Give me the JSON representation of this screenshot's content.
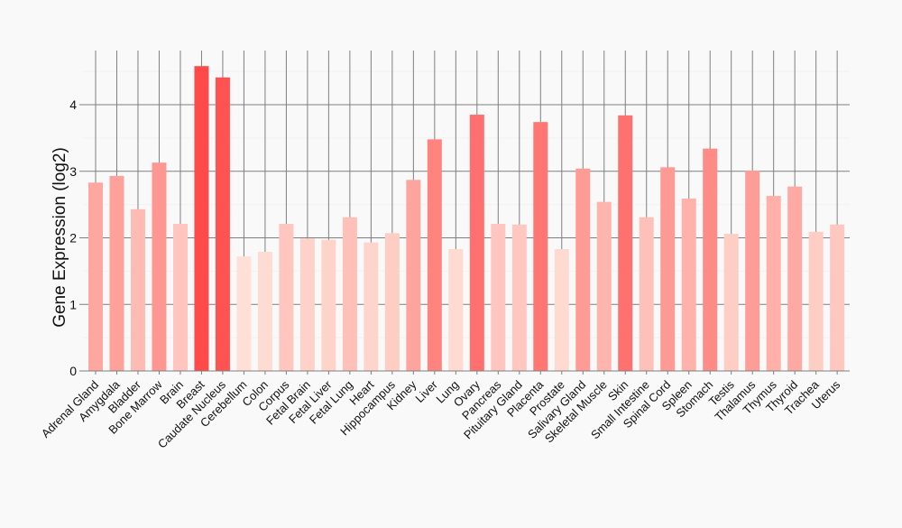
{
  "chart_data": {
    "type": "bar",
    "title": "",
    "xlabel": "",
    "ylabel": "Gene Expression (log2)",
    "ylim": [
      0,
      4.8
    ],
    "yticks": [
      0,
      1,
      2,
      3,
      4
    ],
    "grid": true,
    "colors": {
      "low": "#fee0d6",
      "high": "#ff4a4a"
    },
    "categories": [
      "Adrenal Gland",
      "Amygdala",
      "Bladder",
      "Bone Marrow",
      "Brain",
      "Breast",
      "Caudate Nucleus",
      "Cerebellum",
      "Colon",
      "Corpus",
      "Fetal Brain",
      "Fetal Liver",
      "Fetal Lung",
      "Heart",
      "Hippocampus",
      "Kidney",
      "Liver",
      "Lung",
      "Ovary",
      "Pancreas",
      "Pituitary Gland",
      "Placenta",
      "Prostate",
      "Salivary Gland",
      "Skeletal Muscle",
      "Skin",
      "Small Intestine",
      "Spinal Cord",
      "Spleen",
      "Stomach",
      "Testis",
      "Thalamus",
      "Thymus",
      "Thyroid",
      "Trachea",
      "Uterus"
    ],
    "values": [
      2.83,
      2.93,
      2.43,
      3.13,
      2.21,
      4.58,
      4.41,
      1.72,
      1.79,
      2.21,
      1.99,
      1.97,
      2.31,
      1.93,
      2.07,
      2.87,
      3.48,
      1.83,
      3.85,
      2.21,
      2.2,
      3.74,
      1.83,
      3.04,
      2.54,
      3.84,
      2.31,
      3.06,
      2.59,
      3.34,
      2.06,
      3.01,
      2.63,
      2.77,
      2.09,
      2.2
    ]
  }
}
